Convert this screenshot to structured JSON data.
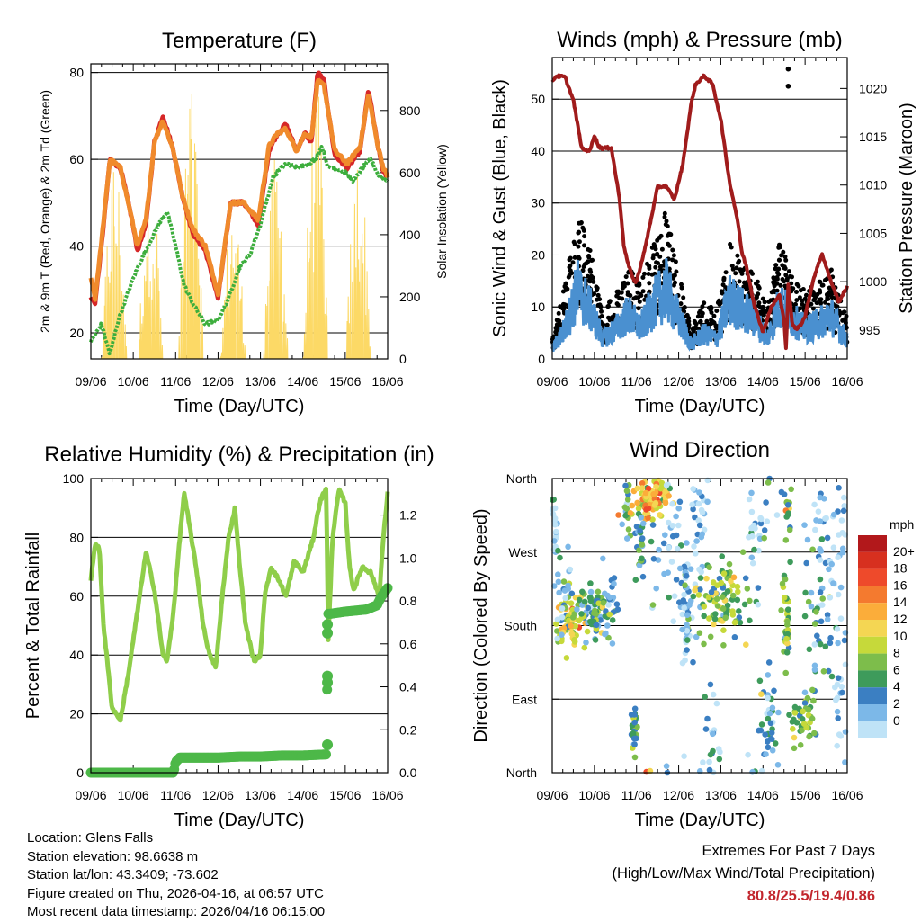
{
  "station": {
    "location": "Location: Glens Falls",
    "elevation": "Station elevation: 98.6638 m",
    "latlon": "Station lat/lon: 43.3409; -73.602",
    "created": "Figure created on Thu, 2026-04-16, at 06:57 UTC",
    "recent": "Most recent data timestamp: 2026/04/16 06:15:00"
  },
  "extremes": {
    "title": "Extremes For Past 7 Days",
    "subtitle": "(High/Low/Max Wind/Total Precipitation)",
    "values": "80.8/25.5/19.4/0.86",
    "value_color": "#c2262d"
  },
  "chart_data": [
    {
      "id": "temperature",
      "type": "line",
      "title": "Temperature (F)",
      "xlabel": "Time (Day/UTC)",
      "ylabel": "2m & 9m T (Red, Orange) & 2m Td (Green)",
      "ylabel_right": "Solar Insolation (Yellow)",
      "x_ticks": [
        "09/06",
        "10/06",
        "11/06",
        "12/06",
        "13/06",
        "14/06",
        "15/06",
        "16/06"
      ],
      "xlim": [
        0,
        7
      ],
      "ylim": [
        14,
        82
      ],
      "yticks": [
        20,
        40,
        60,
        80
      ],
      "y2lim": [
        0,
        950
      ],
      "y2ticks": [
        0,
        200,
        400,
        600,
        800
      ],
      "gridlines": [
        20,
        40,
        60,
        80
      ],
      "series": [
        {
          "name": "2m T",
          "color": "#d62728",
          "x": [
            0,
            0.1,
            0.25,
            0.45,
            0.7,
            0.95,
            1.1,
            1.3,
            1.5,
            1.7,
            1.95,
            2.15,
            2.4,
            2.7,
            3.0,
            3.3,
            3.6,
            3.95,
            4.2,
            4.4,
            4.6,
            4.85,
            5.05,
            5.2,
            5.35,
            5.5,
            5.75,
            6.05,
            6.35,
            6.55,
            6.75,
            6.9,
            7.0
          ],
          "y": [
            28,
            27,
            40,
            60,
            58,
            47,
            39,
            45,
            64,
            70,
            62,
            52,
            43,
            39,
            28,
            50,
            50,
            45,
            62,
            66,
            68,
            62,
            66,
            64,
            80,
            78,
            61,
            58,
            62,
            76,
            64,
            57,
            56
          ]
        },
        {
          "name": "9m T",
          "color": "#f08a2c",
          "x": [
            0,
            0.1,
            0.25,
            0.45,
            0.7,
            0.95,
            1.1,
            1.3,
            1.5,
            1.7,
            1.95,
            2.15,
            2.4,
            2.7,
            3.0,
            3.3,
            3.6,
            3.95,
            4.2,
            4.4,
            4.6,
            4.85,
            5.05,
            5.2,
            5.35,
            5.5,
            5.75,
            6.05,
            6.35,
            6.55,
            6.75,
            6.9,
            7.0
          ],
          "y": [
            33,
            28,
            41,
            60,
            58,
            47,
            40,
            46,
            64,
            69,
            62,
            52,
            44,
            40,
            29,
            50,
            50,
            46,
            63,
            66,
            67,
            62,
            66,
            65,
            78,
            77,
            62,
            59,
            63,
            75,
            64,
            58,
            56
          ]
        },
        {
          "name": "2m Td",
          "color": "#3dae3d",
          "x": [
            0,
            0.25,
            0.45,
            0.65,
            0.9,
            1.1,
            1.35,
            1.6,
            1.8,
            2.0,
            2.2,
            2.45,
            2.7,
            3.0,
            3.25,
            3.5,
            3.75,
            4.0,
            4.3,
            4.6,
            4.9,
            5.1,
            5.3,
            5.45,
            5.6,
            5.8,
            6.0,
            6.2,
            6.4,
            6.6,
            6.8,
            7.0
          ],
          "y": [
            18,
            22,
            15,
            23,
            30,
            35,
            40,
            45,
            48,
            40,
            31,
            26,
            22,
            23,
            28,
            35,
            38,
            45,
            56,
            59,
            58,
            59,
            60,
            63,
            58,
            58,
            57,
            55,
            58,
            60,
            56,
            55
          ]
        }
      ],
      "solar_insolation": {
        "name": "Solar Insolation",
        "color": "#fcd966",
        "peaks": [
          {
            "x": 0.55,
            "v": 680
          },
          {
            "x": 1.4,
            "v": 640
          },
          {
            "x": 2.35,
            "v": 900
          },
          {
            "x": 3.35,
            "v": 520
          },
          {
            "x": 4.35,
            "v": 660
          },
          {
            "x": 5.3,
            "v": 900
          },
          {
            "x": 6.3,
            "v": 700
          }
        ]
      }
    },
    {
      "id": "winds",
      "type": "scatter",
      "title": "Winds (mph) & Pressure (mb)",
      "xlabel": "Time (Day/UTC)",
      "ylabel": "Sonic Wind & Gust (Blue, Black)",
      "ylabel_right": "Station Pressure (Maroon)",
      "x_ticks": [
        "09/06",
        "10/06",
        "11/06",
        "12/06",
        "13/06",
        "14/06",
        "15/06",
        "16/06"
      ],
      "xlim": [
        0,
        7
      ],
      "ylim": [
        0,
        58
      ],
      "yticks": [
        0,
        10,
        20,
        30,
        40,
        50
      ],
      "y2lim": [
        992,
        1023.2
      ],
      "y2ticks": [
        995,
        1000,
        1005,
        1010,
        1015,
        1020
      ],
      "gridlines": [
        10,
        20,
        30,
        40,
        50
      ],
      "wind_envelope": {
        "x": [
          0,
          0.3,
          0.6,
          0.9,
          1.2,
          1.5,
          1.8,
          2.1,
          2.4,
          2.7,
          3.0,
          3.3,
          3.6,
          3.9,
          4.2,
          4.5,
          4.8,
          5.1,
          5.4,
          5.7,
          6.0,
          6.3,
          6.6,
          6.9,
          7.0
        ],
        "y": [
          2,
          6,
          14,
          10,
          4,
          6,
          9,
          6,
          11,
          14,
          8,
          3,
          5,
          4,
          12,
          10,
          8,
          4,
          11,
          8,
          6,
          7,
          9,
          5,
          4
        ]
      },
      "gust_envelope": {
        "x": [
          0,
          0.3,
          0.6,
          0.9,
          1.2,
          1.5,
          1.8,
          2.1,
          2.4,
          2.7,
          3.0,
          3.3,
          3.6,
          3.9,
          4.2,
          4.5,
          4.8,
          5.1,
          5.4,
          5.7,
          6.0,
          6.3,
          6.6,
          6.9,
          7.0
        ],
        "y": [
          3,
          12,
          24,
          18,
          7,
          11,
          15,
          12,
          19,
          24,
          14,
          5,
          9,
          8,
          19,
          16,
          14,
          8,
          19,
          13,
          11,
          12,
          15,
          9,
          7
        ]
      },
      "gust_outliers": [
        {
          "x": 5.6,
          "y": 52.5
        },
        {
          "x": 5.6,
          "y": 55.8
        }
      ],
      "pressure": {
        "name": "Station Pressure",
        "color": "#a01c1c",
        "x": [
          0,
          0.1,
          0.3,
          0.5,
          0.7,
          0.8,
          0.9,
          1.0,
          1.1,
          1.2,
          1.4,
          1.6,
          1.7,
          1.8,
          1.95,
          2.0,
          2.2,
          2.5,
          2.7,
          2.9,
          3.1,
          3.3,
          3.4,
          3.6,
          3.8,
          4.0,
          4.2,
          4.4,
          4.5,
          4.6,
          4.8,
          5.0,
          5.2,
          5.4,
          5.5,
          5.55,
          5.6,
          5.7,
          5.8,
          5.9,
          6.0,
          6.2,
          6.4,
          6.6,
          6.8,
          7.0
        ],
        "y": [
          1020.8,
          1021.3,
          1021.2,
          1018.8,
          1013.8,
          1013.6,
          1013.6,
          1015.2,
          1014.0,
          1013.8,
          1013.9,
          1008.5,
          1003.7,
          1001.8,
          1000.0,
          1000.0,
          1003.4,
          1009.8,
          1009.9,
          1008.5,
          1012.2,
          1018.5,
          1020.4,
          1021.3,
          1020.5,
          1016.8,
          1010.5,
          1006.3,
          1003.0,
          1001.7,
          997.5,
          994.8,
          997.4,
          998.6,
          996.0,
          993.0,
          999.6,
          995.5,
          995.1,
          995.6,
          996.4,
          1000.3,
          1002.9,
          1000.2,
          997.9,
          999.5
        ]
      }
    },
    {
      "id": "humidity",
      "type": "line",
      "title": "Relative Humidity (%) & Precipitation (in)",
      "xlabel": "Time (Day/UTC)",
      "ylabel": "Percent & Total Rainfall",
      "x_ticks": [
        "09/06",
        "10/06",
        "11/06",
        "12/06",
        "13/06",
        "14/06",
        "15/06",
        "16/06"
      ],
      "xlim": [
        0,
        7
      ],
      "ylim": [
        0,
        100
      ],
      "yticks": [
        0,
        20,
        40,
        60,
        80,
        100
      ],
      "y2lim": [
        0,
        1.37
      ],
      "y2ticks": [
        0.0,
        0.2,
        0.4,
        0.6,
        0.8,
        1.0,
        1.2
      ],
      "gridlines": [
        20,
        40,
        60,
        80
      ],
      "series": [
        {
          "name": "Relative Humidity",
          "color": "#8fce4a",
          "x": [
            0,
            0.1,
            0.2,
            0.3,
            0.5,
            0.7,
            0.9,
            1.1,
            1.3,
            1.5,
            1.7,
            1.8,
            1.95,
            2.1,
            2.2,
            2.35,
            2.5,
            2.65,
            2.8,
            2.95,
            3.1,
            3.25,
            3.4,
            3.5,
            3.65,
            3.85,
            4.0,
            4.1,
            4.25,
            4.45,
            4.6,
            4.8,
            5.0,
            5.15,
            5.25,
            5.4,
            5.55,
            5.6,
            5.7,
            5.85,
            6.0,
            6.1,
            6.2,
            6.4,
            6.6,
            6.8,
            6.9,
            7.0
          ],
          "y": [
            65,
            78,
            76,
            50,
            22,
            18,
            35,
            55,
            75,
            62,
            40,
            38,
            55,
            80,
            95,
            82,
            68,
            50,
            40,
            36,
            60,
            80,
            90,
            72,
            50,
            38,
            40,
            60,
            70,
            65,
            60,
            72,
            68,
            75,
            80,
            92,
            97,
            45,
            80,
            96,
            92,
            70,
            62,
            70,
            68,
            60,
            80,
            95
          ]
        },
        {
          "name": "Total Precipitation",
          "color": "#4db848",
          "axis": "right",
          "x": [
            0,
            1.95,
            2.0,
            2.1,
            2.5,
            3.0,
            3.5,
            4.0,
            4.5,
            5.0,
            5.55,
            5.6,
            5.65,
            6.0,
            6.5,
            6.75,
            6.85,
            7.0
          ],
          "y": [
            0.0,
            0.0,
            0.05,
            0.07,
            0.07,
            0.07,
            0.075,
            0.075,
            0.08,
            0.08,
            0.085,
            0.74,
            0.74,
            0.75,
            0.76,
            0.78,
            0.82,
            0.86
          ]
        }
      ]
    },
    {
      "id": "wind-direction",
      "type": "scatter",
      "title": "Wind Direction",
      "xlabel": "Time (Day/UTC)",
      "ylabel": "Direction (Colored By Speed)",
      "x_ticks": [
        "09/06",
        "10/06",
        "11/06",
        "12/06",
        "13/06",
        "14/06",
        "15/06",
        "16/06"
      ],
      "xlim": [
        0,
        7
      ],
      "ylim": [
        0,
        360
      ],
      "yticks": [
        0,
        90,
        180,
        270,
        360
      ],
      "ytick_labels": [
        "North",
        "East",
        "South",
        "West",
        "North"
      ],
      "gridlines": [
        90,
        180,
        270
      ],
      "colorbar": {
        "title": "mph",
        "labels": [
          "20+",
          "18",
          "16",
          "14",
          "12",
          "10",
          "8",
          "6",
          "4",
          "2",
          "0"
        ],
        "colors": [
          "#b2181b",
          "#d7301f",
          "#ee4a2b",
          "#f47a2f",
          "#fbad3a",
          "#f4d653",
          "#c6d93a",
          "#7dbd4b",
          "#3e9b5b",
          "#3b7fc2",
          "#7cb8e8",
          "#bfe3f7"
        ]
      },
      "clusters": [
        {
          "x": 0.05,
          "dir": 300,
          "spd": 1,
          "n": 20,
          "sx": 0.04,
          "sdir": 30
        },
        {
          "x": 0.35,
          "dir": 185,
          "spd": 11,
          "n": 70,
          "sx": 0.18,
          "sdir": 18
        },
        {
          "x": 0.3,
          "dir": 225,
          "spd": 3,
          "n": 20,
          "sx": 0.15,
          "sdir": 25
        },
        {
          "x": 1.0,
          "dir": 195,
          "spd": 7,
          "n": 80,
          "sx": 0.2,
          "sdir": 14
        },
        {
          "x": 1.35,
          "dir": 205,
          "spd": 4,
          "n": 20,
          "sx": 0.1,
          "sdir": 20
        },
        {
          "x": 1.75,
          "dir": 320,
          "spd": 5,
          "n": 15,
          "sx": 0.05,
          "sdir": 25
        },
        {
          "x": 2.3,
          "dir": 335,
          "spd": 14,
          "n": 90,
          "sx": 0.22,
          "sdir": 13
        },
        {
          "x": 2.1,
          "dir": 280,
          "spd": 6,
          "n": 25,
          "sx": 0.05,
          "sdir": 25
        },
        {
          "x": 1.95,
          "dir": 55,
          "spd": 7,
          "n": 25,
          "sx": 0.04,
          "sdir": 18
        },
        {
          "x": 2.8,
          "dir": 300,
          "spd": 3,
          "n": 40,
          "sx": 0.25,
          "sdir": 45
        },
        {
          "x": 3.2,
          "dir": 195,
          "spd": 4,
          "n": 55,
          "sx": 0.08,
          "sdir": 35
        },
        {
          "x": 3.5,
          "dir": 310,
          "spd": 2,
          "n": 30,
          "sx": 0.12,
          "sdir": 40
        },
        {
          "x": 4.05,
          "dir": 210,
          "spd": 9,
          "n": 90,
          "sx": 0.3,
          "sdir": 22
        },
        {
          "x": 3.8,
          "dir": 40,
          "spd": 2,
          "n": 20,
          "sx": 0.1,
          "sdir": 40
        },
        {
          "x": 4.8,
          "dir": 300,
          "spd": 2,
          "n": 30,
          "sx": 0.15,
          "sdir": 45
        },
        {
          "x": 5.1,
          "dir": 60,
          "spd": 4,
          "n": 40,
          "sx": 0.15,
          "sdir": 30
        },
        {
          "x": 5.55,
          "dir": 190,
          "spd": 9,
          "n": 35,
          "sx": 0.05,
          "sdir": 30
        },
        {
          "x": 5.6,
          "dir": 310,
          "spd": 8,
          "n": 15,
          "sx": 0.05,
          "sdir": 30
        },
        {
          "x": 5.9,
          "dir": 60,
          "spd": 9,
          "n": 40,
          "sx": 0.15,
          "sdir": 16
        },
        {
          "x": 6.3,
          "dir": 200,
          "spd": 5,
          "n": 40,
          "sx": 0.2,
          "sdir": 50
        },
        {
          "x": 6.6,
          "dir": 290,
          "spd": 3,
          "n": 40,
          "sx": 0.2,
          "sdir": 50
        },
        {
          "x": 6.9,
          "dir": 120,
          "spd": 2,
          "n": 35,
          "sx": 0.1,
          "sdir": 80
        }
      ]
    }
  ]
}
